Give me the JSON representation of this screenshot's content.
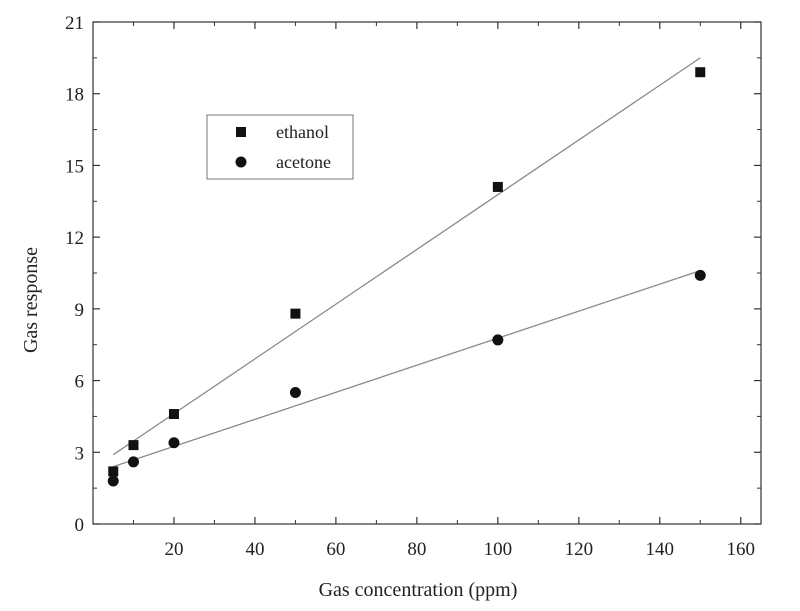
{
  "chart_data": {
    "type": "scatter",
    "title": "",
    "xlabel": "Gas concentration (ppm)",
    "ylabel": "Gas response",
    "xlim": [
      0,
      165
    ],
    "ylim": [
      0,
      21
    ],
    "xticks": [
      20,
      40,
      60,
      80,
      100,
      120,
      140,
      160
    ],
    "xtick_labels": [
      "20",
      "40",
      "60",
      "80",
      "100",
      "120",
      "140",
      "160"
    ],
    "yticks": [
      0,
      3,
      6,
      9,
      12,
      15,
      18,
      21
    ],
    "ytick_labels": [
      "0",
      "3",
      "6",
      "9",
      "12",
      "15",
      "18",
      "21"
    ],
    "grid": false,
    "legend_position": "upper-left",
    "series": [
      {
        "name": "ethanol",
        "marker": "square",
        "x": [
          5,
          10,
          20,
          50,
          100,
          150
        ],
        "y": [
          2.2,
          3.3,
          4.6,
          8.8,
          14.1,
          18.9
        ],
        "fit_line": {
          "x": [
            5,
            150
          ],
          "y": [
            2.9,
            19.5
          ]
        }
      },
      {
        "name": "acetone",
        "marker": "circle",
        "x": [
          5,
          10,
          20,
          50,
          100,
          150
        ],
        "y": [
          1.8,
          2.6,
          3.4,
          5.5,
          7.7,
          10.4
        ],
        "fit_line": {
          "x": [
            5,
            150
          ],
          "y": [
            2.4,
            10.6
          ]
        }
      }
    ],
    "colors": {
      "marker": "#111111",
      "fit_line": "#8a8a8a",
      "axis": "#333333"
    }
  }
}
